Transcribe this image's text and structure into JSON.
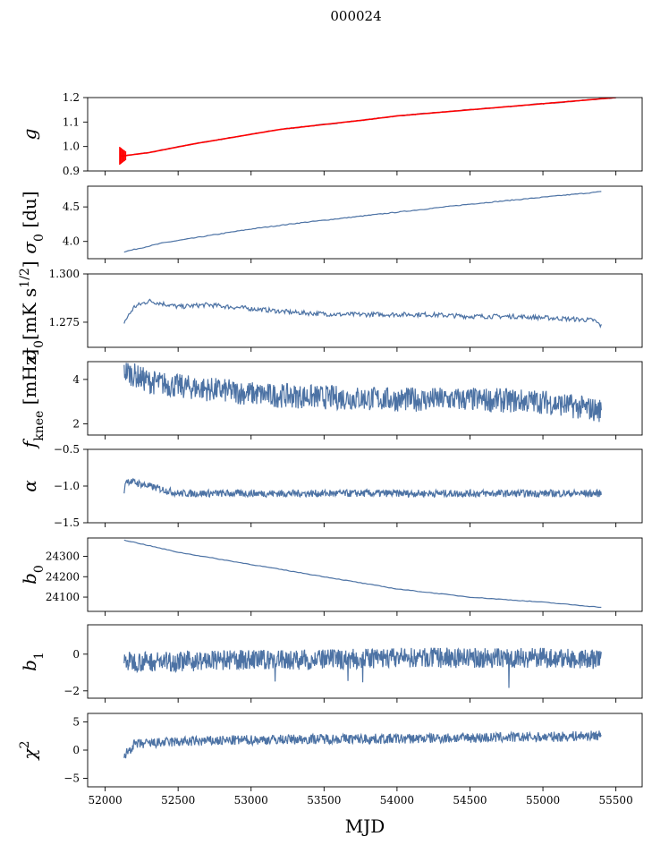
{
  "figure": {
    "title": "000024",
    "xlabel": "MJD",
    "xlim": [
      51880,
      55680
    ],
    "xticks": [
      52000,
      52500,
      53000,
      53500,
      54000,
      54500,
      55000,
      55500
    ],
    "line_color": "#4c72a4",
    "fit_color": "#ff0000"
  },
  "chart_data": [
    {
      "type": "line",
      "id": "g",
      "ylabel": "g",
      "ylim": [
        0.9,
        1.2
      ],
      "yticks": [
        "0.9",
        "1.0",
        "1.1",
        "1.2"
      ],
      "series": [
        {
          "x": [
            52100,
            52300,
            52600,
            53000,
            53200,
            53500,
            53800,
            54000,
            54300,
            54600,
            54900,
            55100,
            55300,
            55500
          ],
          "y": [
            0.96,
            0.975,
            1.01,
            1.05,
            1.07,
            1.09,
            1.11,
            1.125,
            1.14,
            1.155,
            1.17,
            1.18,
            1.19,
            1.2
          ]
        }
      ]
    },
    {
      "type": "line",
      "id": "sigma0_du",
      "ylabel": "σ0 [du]",
      "ylim": [
        3.75,
        4.8
      ],
      "yticks": [
        "4.0",
        "4.5"
      ],
      "series": [
        {
          "x": [
            52130,
            52400,
            52700,
            53000,
            53300,
            53600,
            53900,
            54200,
            54500,
            54800,
            55100,
            55400
          ],
          "y": [
            3.85,
            3.98,
            4.08,
            4.18,
            4.26,
            4.33,
            4.4,
            4.47,
            4.54,
            4.6,
            4.66,
            4.72
          ]
        }
      ]
    },
    {
      "type": "line",
      "id": "sigma0_mk",
      "ylabel": "σ0[mK s1/2]",
      "ylim": [
        1.262,
        1.3
      ],
      "yticks": [
        "1.275",
        "1.300"
      ],
      "series": [
        {
          "x": [
            52130,
            52200,
            52300,
            52500,
            52700,
            53000,
            53300,
            53600,
            53900,
            54200,
            54500,
            54800,
            55100,
            55350,
            55400
          ],
          "y": [
            1.275,
            1.283,
            1.286,
            1.283,
            1.284,
            1.282,
            1.28,
            1.279,
            1.279,
            1.279,
            1.278,
            1.278,
            1.277,
            1.276,
            1.273
          ]
        }
      ]
    },
    {
      "type": "line",
      "id": "fknee",
      "ylabel": "fknee [mHz]",
      "ylim": [
        1.5,
        4.8
      ],
      "yticks": [
        "2",
        "4"
      ],
      "series": [
        {
          "x": [
            52130,
            52300,
            52500,
            52800,
            53100,
            53500,
            54000,
            54500,
            55000,
            55400
          ],
          "y": [
            4.4,
            3.9,
            3.7,
            3.5,
            3.3,
            3.2,
            3.1,
            3.1,
            3.0,
            2.6
          ]
        }
      ]
    },
    {
      "type": "line",
      "id": "alpha",
      "ylabel": "α",
      "ylim": [
        -1.5,
        -0.5
      ],
      "yticks": [
        "-0.5",
        "-1.0",
        "-1.5"
      ],
      "series": [
        {
          "x": [
            52130,
            52140,
            52500,
            53000,
            53500,
            54000,
            54500,
            55000,
            55400
          ],
          "y": [
            -1.1,
            -0.92,
            -1.1,
            -1.1,
            -1.1,
            -1.1,
            -1.1,
            -1.1,
            -1.1
          ]
        }
      ]
    },
    {
      "type": "line",
      "id": "b0",
      "ylabel": "b0",
      "ylim": [
        24030,
        24390
      ],
      "yticks": [
        "24100",
        "24200",
        "24300"
      ],
      "series": [
        {
          "x": [
            52130,
            52500,
            53000,
            53500,
            54000,
            54500,
            55000,
            55400
          ],
          "y": [
            24380,
            24320,
            24260,
            24200,
            24140,
            24100,
            24075,
            24050
          ]
        }
      ]
    },
    {
      "type": "line",
      "id": "b1",
      "ylabel": "b1",
      "ylim": [
        -2.4,
        1.6
      ],
      "yticks": [
        "0",
        "-2"
      ],
      "series": [
        {
          "x": [
            52130,
            52500,
            53000,
            53500,
            54000,
            54500,
            55000,
            55400
          ],
          "y": [
            -0.4,
            -0.4,
            -0.3,
            -0.3,
            -0.2,
            -0.2,
            -0.2,
            -0.3
          ]
        }
      ]
    },
    {
      "type": "line",
      "id": "chi2",
      "ylabel": "χ2",
      "ylim": [
        -6.5,
        6.5
      ],
      "yticks": [
        "5",
        "0",
        "-5"
      ],
      "series": [
        {
          "x": [
            52130,
            52200,
            52500,
            53000,
            53500,
            54000,
            54500,
            55000,
            55400
          ],
          "y": [
            -1.0,
            1.0,
            1.5,
            1.8,
            2.0,
            2.0,
            2.2,
            2.3,
            2.6
          ]
        }
      ]
    }
  ]
}
